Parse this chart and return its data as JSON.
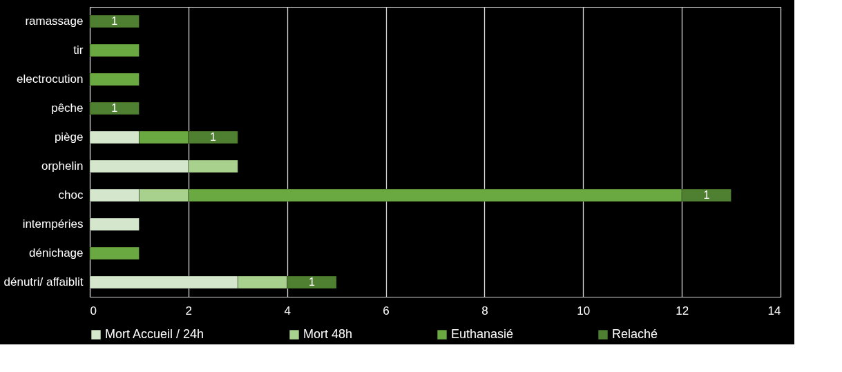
{
  "chart_data": {
    "type": "bar",
    "orientation": "horizontal",
    "stacked": true,
    "categories": [
      "ramassage",
      "tir",
      "electrocution",
      "pêche",
      "piège",
      "orphelin",
      "choc",
      "intempéries",
      "dénichage",
      "dénutri/ affaiblit"
    ],
    "series": [
      {
        "name": "Mort Accueil / 24h",
        "color": "#d4e6cb",
        "values": [
          null,
          null,
          null,
          null,
          1,
          2,
          1,
          1,
          null,
          3
        ]
      },
      {
        "name": "Mort 48h",
        "color": "#a9d18e",
        "values": [
          null,
          null,
          null,
          null,
          null,
          1,
          1,
          null,
          null,
          1
        ]
      },
      {
        "name": "Euthanasié",
        "color": "#6aa842",
        "values": [
          null,
          1,
          1,
          null,
          1,
          null,
          10,
          null,
          1,
          null
        ]
      },
      {
        "name": "Relaché",
        "color": "#4f7f31",
        "values": [
          1,
          null,
          null,
          1,
          1,
          null,
          1,
          null,
          null,
          1
        ],
        "value_labels": [
          "1",
          null,
          null,
          "1",
          "1",
          null,
          "1",
          null,
          null,
          "1"
        ]
      }
    ],
    "xlim": [
      0,
      14
    ],
    "xticks": [
      0,
      2,
      4,
      6,
      8,
      10,
      12,
      14
    ],
    "grid": "x",
    "legend": "bottom"
  }
}
